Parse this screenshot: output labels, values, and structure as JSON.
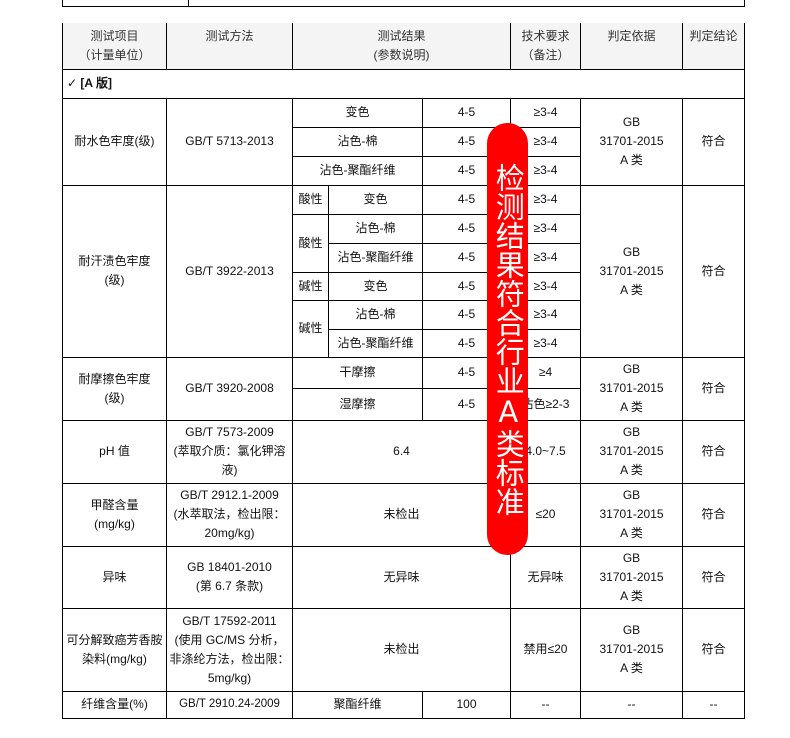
{
  "header": [
    "测试项目\n（计量单位）",
    "测试方法",
    "测试结果\n(参数说明)",
    "技术要求\n（备注）",
    "判定依据",
    "判定结论"
  ],
  "section": "✓  [A 版]",
  "basis": "GB\n31701-2015\nA 类",
  "pass": "符合",
  "water": {
    "item": "耐水色牢度(级)",
    "method": "GB/T 5713-2013",
    "rows": [
      [
        "变色",
        "4-5",
        "≥3-4"
      ],
      [
        "沾色-棉",
        "4-5",
        "≥3-4"
      ],
      [
        "沾色-聚酯纤维",
        "4-5",
        "≥3-4"
      ]
    ]
  },
  "sweat": {
    "item": "耐汗渍色牢度\n(级)",
    "method": "GB/T 3922-2013",
    "groups": [
      "酸性",
      "酸性",
      "碱性",
      "碱性"
    ],
    "rows": [
      [
        "变色",
        "4-5",
        "≥3-4"
      ],
      [
        "沾色-棉",
        "4-5",
        "≥3-4"
      ],
      [
        "沾色-聚酯纤维",
        "4-5",
        "≥3-4"
      ],
      [
        "变色",
        "4-5",
        "≥3-4"
      ],
      [
        "沾色-棉",
        "4-5",
        "≥3-4"
      ],
      [
        "沾色-聚酯纤维",
        "4-5",
        "≥3-4"
      ]
    ]
  },
  "rub": {
    "item": "耐摩擦色牢度\n(级)",
    "method": "GB/T 3920-2008",
    "rows": [
      [
        "干摩擦",
        "4-5",
        "≥4"
      ],
      [
        "湿摩擦",
        "4-5",
        "沾色≥2-3"
      ]
    ]
  },
  "ph": {
    "item": "pH 值",
    "method": "GB/T 7573-2009\n(萃取介质：氯化钾溶液)",
    "result": "6.4",
    "req": "4.0~7.5"
  },
  "formaldehyde": {
    "item": "甲醛含量\n(mg/kg)",
    "method": "GB/T 2912.1-2009\n(水萃取法，检出限：20mg/kg)",
    "result": "未检出",
    "req": "≤20"
  },
  "odor": {
    "item": "异味",
    "method": "GB 18401-2010\n(第 6.7 条款)",
    "result": "无异味",
    "req": "无异味"
  },
  "amine": {
    "item": "可分解致癌芳香胺染料(mg/kg)",
    "method": "GB/T 17592-2011\n(使用 GC/MS 分析，非涤纶方法，检出限：5mg/kg)",
    "result": "未检出",
    "req": "禁用≤20"
  },
  "fiber": {
    "item": "纤维含量(%)",
    "method": "GB/T 2910.24-2009",
    "result_name": "聚酯纤维",
    "result": "100",
    "req": "--",
    "basis": "--",
    "conclusion": "--"
  },
  "stamp": {
    "text": "检测结果符合行业A类标准",
    "color": "#ff0000"
  }
}
